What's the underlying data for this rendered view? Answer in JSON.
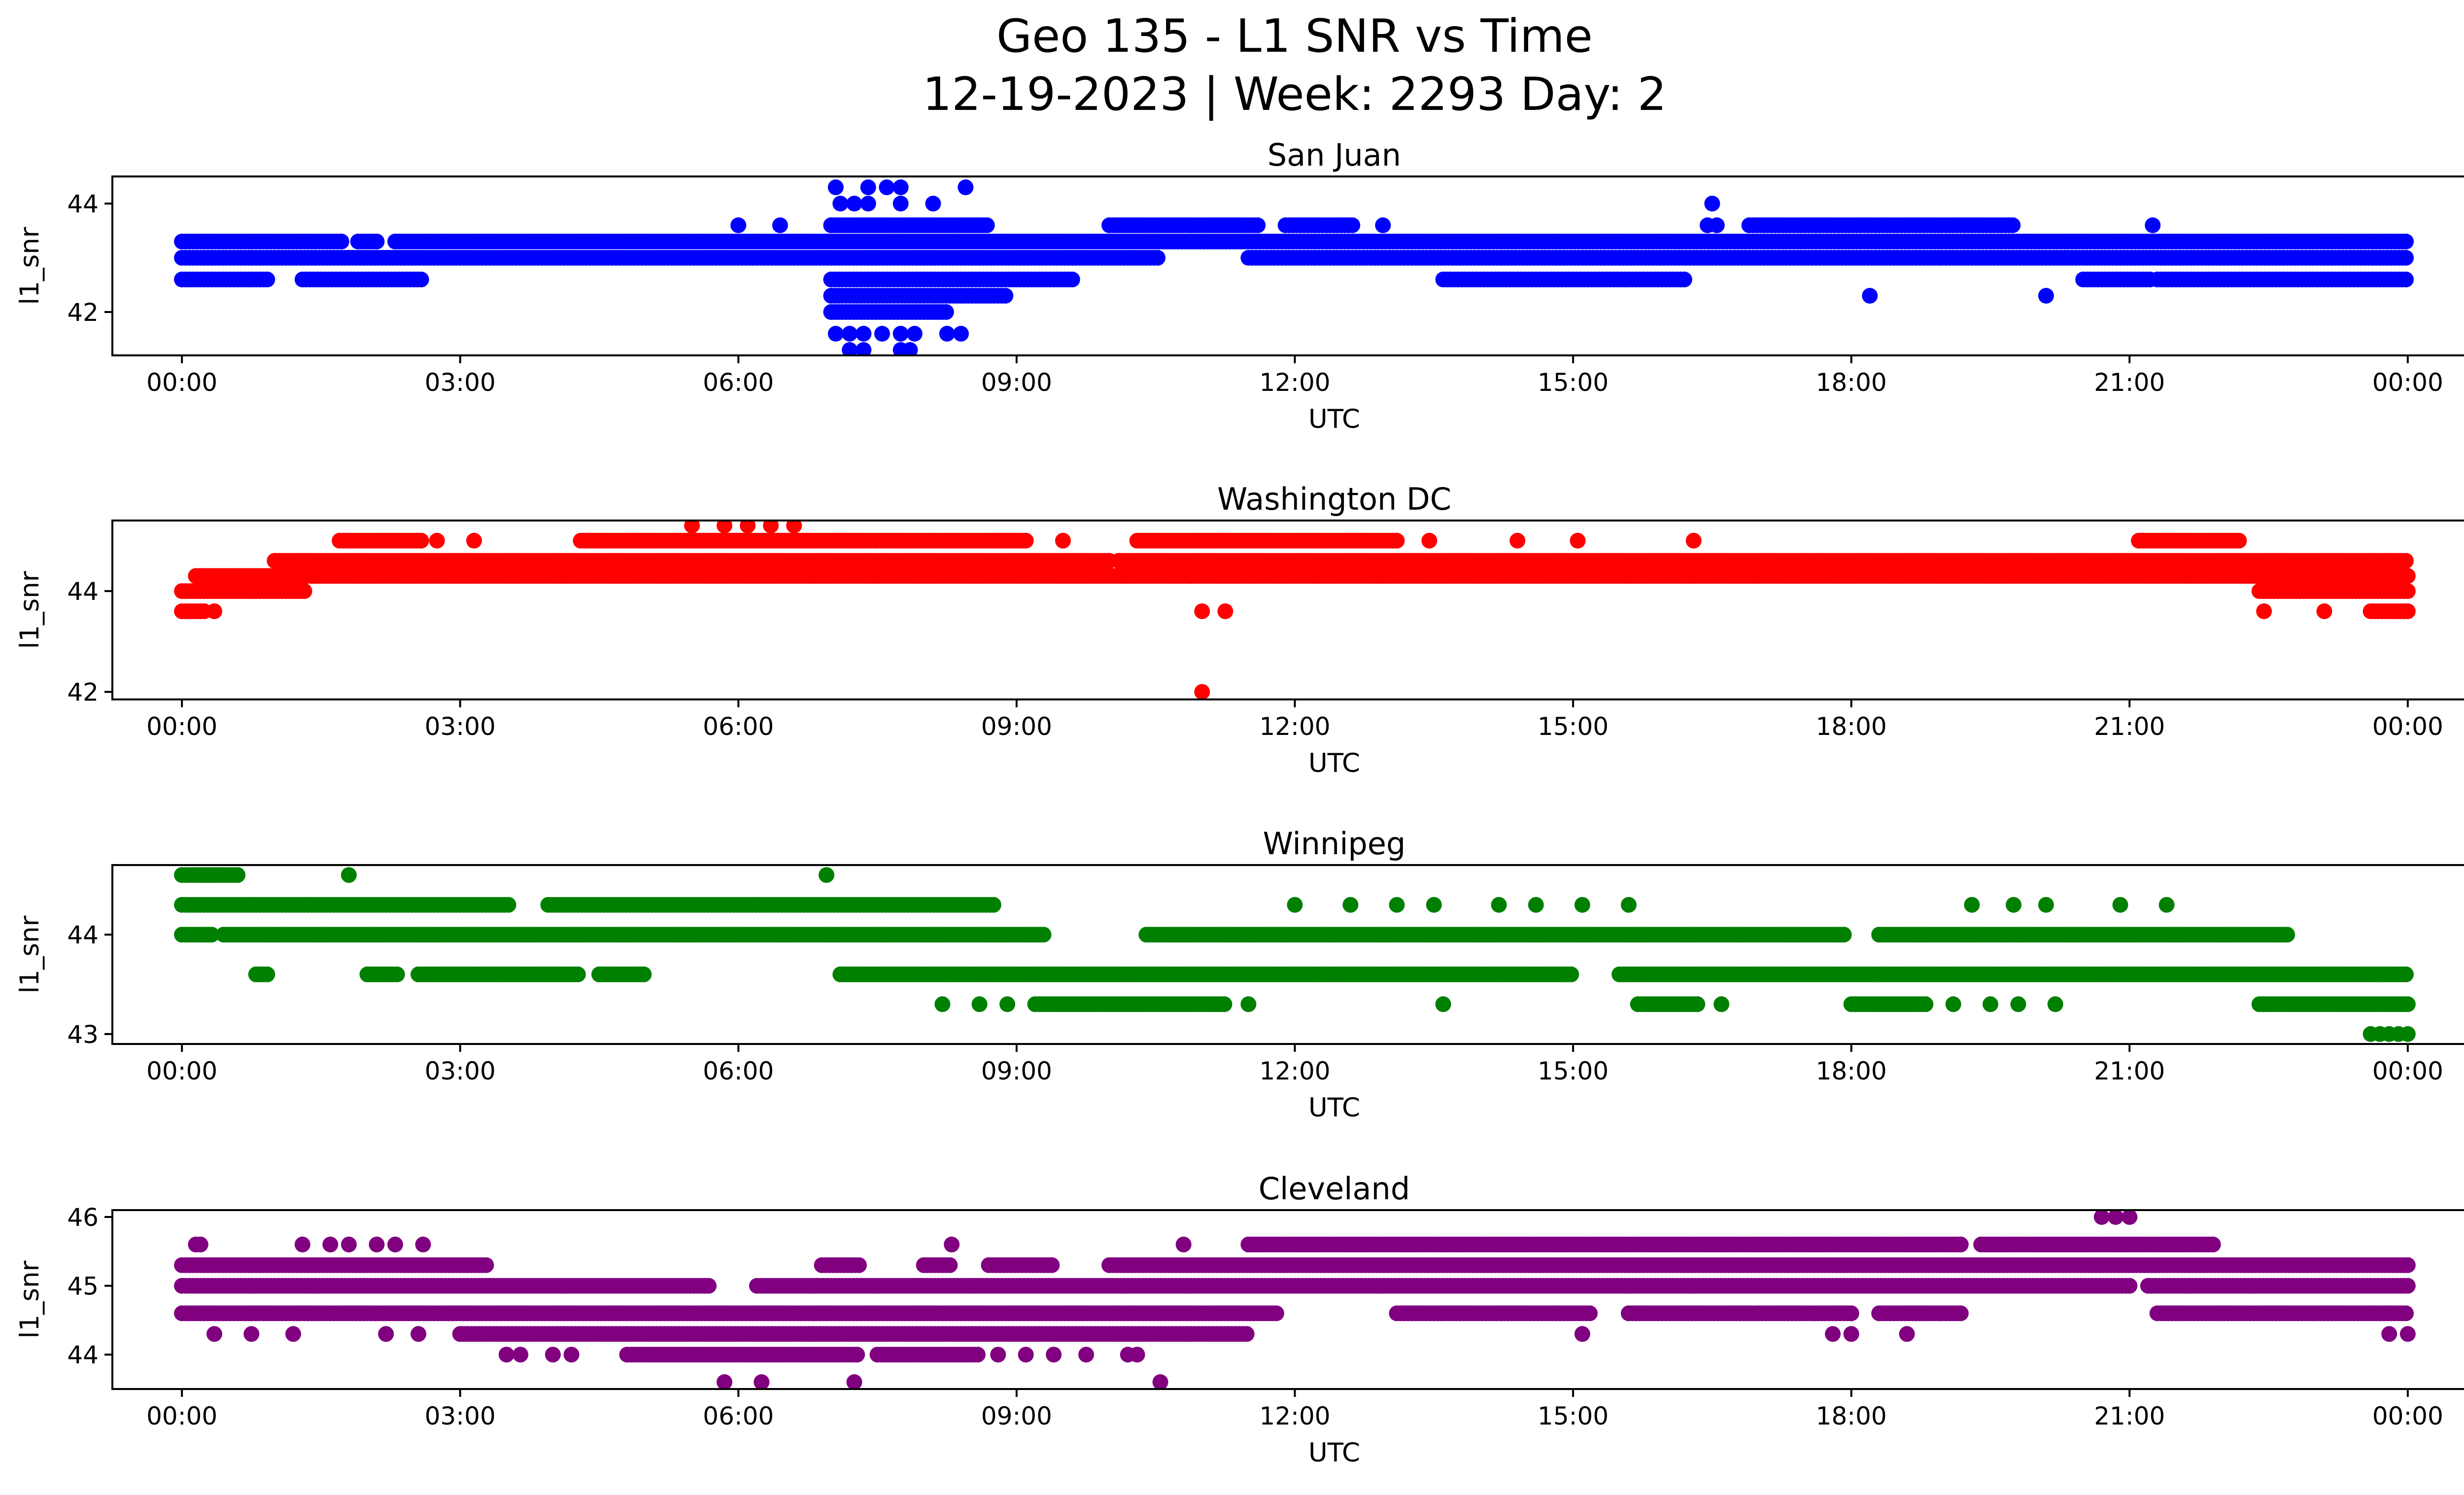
{
  "figure": {
    "title_line1": "Geo 135 - L1 SNR vs Time",
    "title_line2": "12-19-2023 | Week: 2293 Day: 2"
  },
  "x_axis": {
    "label": "UTC",
    "range_hours": [
      -0.75,
      25.6
    ],
    "ticks": [
      {
        "h": 0,
        "label": "00:00"
      },
      {
        "h": 3,
        "label": "03:00"
      },
      {
        "h": 6,
        "label": "06:00"
      },
      {
        "h": 9,
        "label": "09:00"
      },
      {
        "h": 12,
        "label": "12:00"
      },
      {
        "h": 15,
        "label": "15:00"
      },
      {
        "h": 18,
        "label": "18:00"
      },
      {
        "h": 21,
        "label": "21:00"
      },
      {
        "h": 24,
        "label": "00:00"
      }
    ]
  },
  "chart_data": [
    {
      "type": "scatter",
      "title": "San Juan",
      "xlabel": "UTC",
      "ylabel": "l1_snr",
      "color": "#0000ff",
      "ylim": [
        41.2,
        44.5
      ],
      "yticks": [
        {
          "v": 42,
          "label": "42"
        },
        {
          "v": 44,
          "label": "44"
        }
      ],
      "x_range": [
        "00:00",
        "24:00"
      ],
      "bands": [
        {
          "y": 43.3,
          "segments": [
            [
              0,
              1.75
            ],
            [
              1.9,
              2.1
            ],
            [
              2.3,
              24
            ]
          ]
        },
        {
          "y": 43.0,
          "segments": [
            [
              0,
              10.55
            ],
            [
              11.5,
              24
            ]
          ]
        },
        {
          "y": 42.6,
          "segments": [
            [
              0,
              0.95
            ],
            [
              1.3,
              2.6
            ],
            [
              7.0,
              9.6
            ],
            [
              13.6,
              16.2
            ],
            [
              20.5,
              21.25
            ],
            [
              21.3,
              24
            ]
          ]
        },
        {
          "y": 43.6,
          "segments": [
            [
              7.0,
              8.7
            ],
            [
              10.0,
              11.6
            ],
            [
              11.9,
              12.65
            ],
            [
              16.9,
              19.75
            ]
          ]
        },
        {
          "y": 42.3,
          "segments": [
            [
              7.0,
              8.9
            ]
          ]
        },
        {
          "y": 42.0,
          "segments": [
            [
              7.0,
              8.25
            ]
          ]
        }
      ],
      "points": [
        {
          "x": 7.05,
          "y": 44.3
        },
        {
          "x": 7.4,
          "y": 44.3
        },
        {
          "x": 7.6,
          "y": 44.3
        },
        {
          "x": 7.75,
          "y": 44.3
        },
        {
          "x": 8.45,
          "y": 44.3
        },
        {
          "x": 7.1,
          "y": 44.0
        },
        {
          "x": 7.25,
          "y": 44.0
        },
        {
          "x": 7.4,
          "y": 44.0
        },
        {
          "x": 7.75,
          "y": 44.0
        },
        {
          "x": 8.1,
          "y": 44.0
        },
        {
          "x": 7.05,
          "y": 41.6
        },
        {
          "x": 7.2,
          "y": 41.6
        },
        {
          "x": 7.35,
          "y": 41.6
        },
        {
          "x": 7.55,
          "y": 41.6
        },
        {
          "x": 7.75,
          "y": 41.6
        },
        {
          "x": 7.9,
          "y": 41.6
        },
        {
          "x": 8.25,
          "y": 41.6
        },
        {
          "x": 8.4,
          "y": 41.6
        },
        {
          "x": 7.2,
          "y": 41.3
        },
        {
          "x": 7.35,
          "y": 41.3
        },
        {
          "x": 7.75,
          "y": 41.3
        },
        {
          "x": 7.85,
          "y": 41.3
        },
        {
          "x": 6.0,
          "y": 43.6
        },
        {
          "x": 6.45,
          "y": 43.6
        },
        {
          "x": 12.95,
          "y": 43.6
        },
        {
          "x": 16.45,
          "y": 43.6
        },
        {
          "x": 16.55,
          "y": 43.6
        },
        {
          "x": 21.25,
          "y": 43.6
        },
        {
          "x": 16.5,
          "y": 44.0
        },
        {
          "x": 18.2,
          "y": 42.3
        },
        {
          "x": 20.1,
          "y": 42.3
        }
      ]
    },
    {
      "type": "scatter",
      "title": "Washington DC",
      "xlabel": "UTC",
      "ylabel": "l1_snr",
      "color": "#ff0000",
      "ylim": [
        41.85,
        45.4
      ],
      "yticks": [
        {
          "v": 42,
          "label": "42"
        },
        {
          "v": 44,
          "label": "44"
        }
      ],
      "x_range": [
        "00:00",
        "24:00"
      ],
      "bands": [
        {
          "y": 44.0,
          "segments": [
            [
              0,
              1.35
            ],
            [
              22.4,
              24
            ]
          ]
        },
        {
          "y": 44.3,
          "segments": [
            [
              0.15,
              1.35
            ],
            [
              1.4,
              24
            ]
          ]
        },
        {
          "y": 44.6,
          "segments": [
            [
              1.0,
              10.0
            ],
            [
              10.1,
              24
            ]
          ]
        },
        {
          "y": 45.0,
          "segments": [
            [
              1.7,
              2.6
            ],
            [
              4.3,
              9.1
            ],
            [
              10.3,
              13.1
            ],
            [
              21.1,
              22.2
            ]
          ]
        },
        {
          "y": 43.6,
          "segments": [
            [
              0,
              0.25
            ],
            [
              23.6,
              24
            ]
          ]
        }
      ],
      "points": [
        {
          "x": 0.35,
          "y": 43.6
        },
        {
          "x": 11.0,
          "y": 43.6
        },
        {
          "x": 11.25,
          "y": 43.6
        },
        {
          "x": 22.45,
          "y": 43.6
        },
        {
          "x": 23.1,
          "y": 43.6
        },
        {
          "x": 11.0,
          "y": 42.0
        },
        {
          "x": 5.5,
          "y": 45.3
        },
        {
          "x": 5.85,
          "y": 45.3
        },
        {
          "x": 6.1,
          "y": 45.3
        },
        {
          "x": 6.35,
          "y": 45.3
        },
        {
          "x": 6.6,
          "y": 45.3
        },
        {
          "x": 2.75,
          "y": 45.0
        },
        {
          "x": 3.15,
          "y": 45.0
        },
        {
          "x": 9.5,
          "y": 45.0
        },
        {
          "x": 13.45,
          "y": 45.0
        },
        {
          "x": 14.4,
          "y": 45.0
        },
        {
          "x": 15.05,
          "y": 45.0
        },
        {
          "x": 16.3,
          "y": 45.0
        }
      ]
    },
    {
      "type": "scatter",
      "title": "Winnipeg",
      "xlabel": "UTC",
      "ylabel": "l1_snr",
      "color": "#008000",
      "ylim": [
        42.9,
        44.7
      ],
      "yticks": [
        {
          "v": 43,
          "label": "43"
        },
        {
          "v": 44,
          "label": "44"
        }
      ],
      "x_range": [
        "00:00",
        "24:00"
      ],
      "bands": [
        {
          "y": 44.3,
          "segments": [
            [
              0,
              3.55
            ],
            [
              3.95,
              8.75
            ]
          ]
        },
        {
          "y": 44.0,
          "segments": [
            [
              0,
              0.35
            ],
            [
              0.45,
              9.3
            ],
            [
              10.4,
              17.95
            ],
            [
              18.3,
              22.7
            ]
          ]
        },
        {
          "y": 43.6,
          "segments": [
            [
              0.8,
              0.95
            ],
            [
              2.0,
              2.35
            ],
            [
              2.55,
              4.3
            ],
            [
              4.5,
              5.0
            ],
            [
              7.1,
              15.0
            ],
            [
              15.5,
              24
            ]
          ]
        },
        {
          "y": 43.3,
          "segments": [
            [
              9.2,
              11.25
            ],
            [
              15.7,
              16.35
            ],
            [
              18.0,
              18.8
            ],
            [
              22.4,
              24
            ]
          ]
        },
        {
          "y": 44.6,
          "segments": [
            [
              0.0,
              0.6
            ]
          ]
        }
      ],
      "points": [
        {
          "x": 1.8,
          "y": 44.6
        },
        {
          "x": 6.95,
          "y": 44.6
        },
        {
          "x": 12.0,
          "y": 44.3
        },
        {
          "x": 12.6,
          "y": 44.3
        },
        {
          "x": 13.1,
          "y": 44.3
        },
        {
          "x": 13.5,
          "y": 44.3
        },
        {
          "x": 14.2,
          "y": 44.3
        },
        {
          "x": 14.6,
          "y": 44.3
        },
        {
          "x": 15.1,
          "y": 44.3
        },
        {
          "x": 15.6,
          "y": 44.3
        },
        {
          "x": 19.3,
          "y": 44.3
        },
        {
          "x": 19.75,
          "y": 44.3
        },
        {
          "x": 20.1,
          "y": 44.3
        },
        {
          "x": 20.9,
          "y": 44.3
        },
        {
          "x": 21.4,
          "y": 44.3
        },
        {
          "x": 8.2,
          "y": 43.3
        },
        {
          "x": 8.6,
          "y": 43.3
        },
        {
          "x": 8.9,
          "y": 43.3
        },
        {
          "x": 11.5,
          "y": 43.3
        },
        {
          "x": 13.6,
          "y": 43.3
        },
        {
          "x": 16.6,
          "y": 43.3
        },
        {
          "x": 19.1,
          "y": 43.3
        },
        {
          "x": 19.5,
          "y": 43.3
        },
        {
          "x": 19.8,
          "y": 43.3
        },
        {
          "x": 20.2,
          "y": 43.3
        },
        {
          "x": 23.6,
          "y": 43.0
        },
        {
          "x": 23.7,
          "y": 43.0
        },
        {
          "x": 23.8,
          "y": 43.0
        },
        {
          "x": 23.9,
          "y": 43.0
        },
        {
          "x": 24.0,
          "y": 43.0
        }
      ]
    },
    {
      "type": "scatter",
      "title": "Cleveland",
      "xlabel": "UTC",
      "ylabel": "l1_snr",
      "color": "#800080",
      "ylim": [
        43.5,
        46.1
      ],
      "yticks": [
        {
          "v": 44,
          "label": "44"
        },
        {
          "v": 45,
          "label": "45"
        },
        {
          "v": 46,
          "label": "46"
        }
      ],
      "x_range": [
        "00:00",
        "24:00"
      ],
      "bands": [
        {
          "y": 45.3,
          "segments": [
            [
              0,
              3.3
            ],
            [
              6.9,
              7.3
            ],
            [
              8.0,
              8.3
            ],
            [
              8.7,
              9.4
            ],
            [
              10.0,
              24
            ]
          ]
        },
        {
          "y": 45.0,
          "segments": [
            [
              0,
              5.7
            ],
            [
              6.2,
              21.0
            ],
            [
              21.2,
              24
            ]
          ]
        },
        {
          "y": 44.6,
          "segments": [
            [
              0,
              11.8
            ],
            [
              13.1,
              15.2
            ],
            [
              15.6,
              18.0
            ],
            [
              18.3,
              19.2
            ],
            [
              21.3,
              24
            ]
          ]
        },
        {
          "y": 44.3,
          "segments": [
            [
              3.0,
              11.5
            ]
          ]
        },
        {
          "y": 44.0,
          "segments": [
            [
              4.8,
              7.3
            ],
            [
              7.5,
              8.6
            ]
          ]
        },
        {
          "y": 45.6,
          "segments": [
            [
              11.5,
              19.2
            ],
            [
              19.4,
              20.3
            ],
            [
              20.3,
              21.9
            ]
          ]
        }
      ],
      "points": [
        {
          "x": 0.15,
          "y": 45.6
        },
        {
          "x": 0.2,
          "y": 45.6
        },
        {
          "x": 1.3,
          "y": 45.6
        },
        {
          "x": 1.6,
          "y": 45.6
        },
        {
          "x": 1.8,
          "y": 45.6
        },
        {
          "x": 2.1,
          "y": 45.6
        },
        {
          "x": 2.3,
          "y": 45.6
        },
        {
          "x": 2.6,
          "y": 45.6
        },
        {
          "x": 8.3,
          "y": 45.6
        },
        {
          "x": 10.8,
          "y": 45.6
        },
        {
          "x": 20.7,
          "y": 46.0
        },
        {
          "x": 20.85,
          "y": 46.0
        },
        {
          "x": 21.0,
          "y": 46.0
        },
        {
          "x": 0.35,
          "y": 44.3
        },
        {
          "x": 0.75,
          "y": 44.3
        },
        {
          "x": 1.2,
          "y": 44.3
        },
        {
          "x": 2.2,
          "y": 44.3
        },
        {
          "x": 2.55,
          "y": 44.3
        },
        {
          "x": 15.1,
          "y": 44.3
        },
        {
          "x": 17.8,
          "y": 44.3
        },
        {
          "x": 18.0,
          "y": 44.3
        },
        {
          "x": 18.6,
          "y": 44.3
        },
        {
          "x": 23.8,
          "y": 44.3
        },
        {
          "x": 24.0,
          "y": 44.3
        },
        {
          "x": 3.5,
          "y": 44.0
        },
        {
          "x": 3.65,
          "y": 44.0
        },
        {
          "x": 4.0,
          "y": 44.0
        },
        {
          "x": 4.2,
          "y": 44.0
        },
        {
          "x": 8.8,
          "y": 44.0
        },
        {
          "x": 9.1,
          "y": 44.0
        },
        {
          "x": 9.4,
          "y": 44.0
        },
        {
          "x": 9.75,
          "y": 44.0
        },
        {
          "x": 10.2,
          "y": 44.0
        },
        {
          "x": 10.3,
          "y": 44.0
        },
        {
          "x": 5.85,
          "y": 43.6
        },
        {
          "x": 6.25,
          "y": 43.6
        },
        {
          "x": 7.25,
          "y": 43.6
        },
        {
          "x": 10.55,
          "y": 43.6
        }
      ]
    }
  ]
}
